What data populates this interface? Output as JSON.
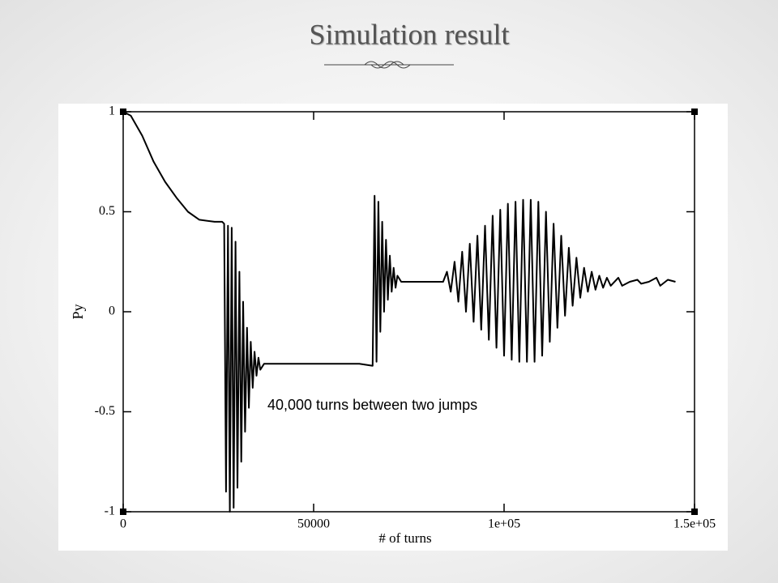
{
  "chart_data": {
    "type": "line",
    "title": "Simulation result",
    "xlabel": "# of turns",
    "ylabel": "Py",
    "annotation": "40,000 turns between two jumps",
    "color": "#000000",
    "xlim": [
      0,
      150000
    ],
    "ylim": [
      -1,
      1
    ],
    "xticks": [
      0,
      50000,
      {
        "value": 100000,
        "label": "1e+05"
      },
      {
        "value": 150000,
        "label": "1.5e+05"
      }
    ],
    "yticks": [
      -1,
      -0.5,
      0,
      0.5,
      1
    ],
    "x": [
      0,
      2000,
      5000,
      8000,
      11000,
      14000,
      17000,
      20000,
      24000,
      26000,
      26500,
      27000,
      27500,
      28000,
      28500,
      29000,
      29500,
      30000,
      30500,
      31000,
      31500,
      32000,
      32500,
      33000,
      33500,
      34000,
      34500,
      35000,
      35500,
      36000,
      37000,
      45000,
      55000,
      62000,
      65500,
      66000,
      66500,
      67000,
      67500,
      68000,
      68500,
      69000,
      69500,
      70000,
      70500,
      71000,
      71500,
      72000,
      73000,
      80000,
      84000,
      85000,
      86000,
      87000,
      88000,
      89000,
      90000,
      91000,
      92000,
      93000,
      94000,
      95000,
      96000,
      97000,
      98000,
      99000,
      100000,
      101000,
      102000,
      103000,
      104000,
      105000,
      106000,
      107000,
      108000,
      109000,
      110000,
      111000,
      112000,
      113000,
      114000,
      115000,
      116000,
      117000,
      118000,
      119000,
      120000,
      121000,
      122000,
      123000,
      124000,
      125000,
      126000,
      127000,
      128000,
      130000,
      131000,
      133000,
      135000,
      136000,
      138000,
      140000,
      141000,
      143000,
      145000
    ],
    "values": [
      1,
      0.98,
      0.88,
      0.75,
      0.65,
      0.57,
      0.5,
      0.46,
      0.45,
      0.45,
      0.44,
      -0.9,
      0.43,
      -1.0,
      0.42,
      -0.98,
      0.35,
      -0.88,
      0.2,
      -0.75,
      0.05,
      -0.6,
      -0.08,
      -0.48,
      -0.15,
      -0.38,
      -0.2,
      -0.32,
      -0.23,
      -0.29,
      -0.26,
      -0.26,
      -0.26,
      -0.26,
      -0.27,
      0.58,
      -0.25,
      0.55,
      -0.1,
      0.45,
      0,
      0.36,
      0.06,
      0.28,
      0.1,
      0.22,
      0.12,
      0.18,
      0.15,
      0.15,
      0.15,
      0.2,
      0.1,
      0.25,
      0.05,
      0.3,
      0,
      0.34,
      -0.05,
      0.38,
      -0.09,
      0.43,
      -0.14,
      0.48,
      -0.18,
      0.51,
      -0.22,
      0.54,
      -0.24,
      0.55,
      -0.25,
      0.56,
      -0.25,
      0.56,
      -0.25,
      0.55,
      -0.22,
      0.5,
      -0.15,
      0.44,
      -0.08,
      0.38,
      -0.02,
      0.32,
      0.03,
      0.27,
      0.07,
      0.22,
      0.1,
      0.2,
      0.11,
      0.18,
      0.12,
      0.17,
      0.13,
      0.17,
      0.13,
      0.15,
      0.16,
      0.14,
      0.15,
      0.17,
      0.13,
      0.16,
      0.15
    ]
  }
}
